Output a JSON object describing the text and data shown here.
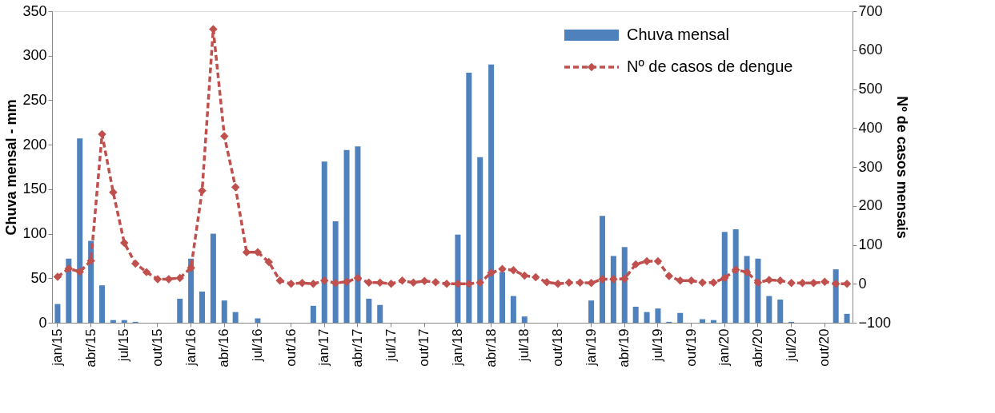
{
  "chart_data": {
    "type": "bar",
    "categories": [
      "jan/15",
      null,
      null,
      "abr/15",
      null,
      null,
      "jul/15",
      null,
      null,
      "out/15",
      null,
      null,
      "jan/16",
      null,
      null,
      "abr/16",
      null,
      null,
      "jul/16",
      null,
      null,
      "out/16",
      null,
      null,
      "jan/17",
      null,
      null,
      "abr/17",
      null,
      null,
      "jul/17",
      null,
      null,
      "out/17",
      null,
      null,
      "jan/18",
      null,
      null,
      "abr/18",
      null,
      null,
      "jul/18",
      null,
      null,
      "out/18",
      null,
      null,
      "jan/19",
      null,
      null,
      "abr/19",
      null,
      null,
      "jul/19",
      null,
      null,
      "out/19",
      null,
      null,
      "jan/20",
      null,
      null,
      "abr/20",
      null,
      null,
      "jul/20",
      null,
      null,
      "out/20",
      null,
      null
    ],
    "series": [
      {
        "name": "Chuva mensal",
        "color": "#4f81bd",
        "values": [
          21,
          72,
          207,
          92,
          42,
          3,
          3,
          1,
          0,
          0,
          0,
          27,
          72,
          35,
          100,
          25,
          12,
          0,
          5,
          0,
          0,
          0,
          0,
          19,
          181,
          114,
          194,
          198,
          27,
          20,
          0,
          0,
          0,
          0,
          0,
          0,
          99,
          281,
          186,
          290,
          57,
          30,
          7,
          0,
          0,
          0,
          0,
          0,
          25,
          120,
          75,
          85,
          18,
          12,
          16,
          1,
          11,
          0,
          4,
          3,
          102,
          105,
          75,
          72,
          30,
          26,
          1,
          0,
          0,
          0,
          60,
          10
        ]
      },
      {
        "name": "Nº de casos de dengue",
        "type": "line",
        "axis": "y2",
        "color": "#c0504d",
        "marker": "diamond",
        "line_style": "dashed",
        "values": [
          18,
          39,
          31,
          59,
          384,
          235,
          105,
          52,
          30,
          12,
          12,
          15,
          41,
          239,
          654,
          379,
          248,
          81,
          81,
          56,
          8,
          0,
          2,
          0,
          8,
          2,
          5,
          15,
          3,
          3,
          0,
          8,
          3,
          7,
          4,
          0,
          0,
          0,
          3,
          28,
          38,
          35,
          21,
          17,
          4,
          0,
          3,
          3,
          2,
          12,
          12,
          13,
          50,
          58,
          58,
          20,
          8,
          8,
          3,
          3,
          15,
          36,
          30,
          3,
          10,
          8,
          2,
          2,
          2,
          5,
          0,
          0
        ]
      }
    ],
    "ylabel": "Chuva mensal - mm",
    "y2label": "Nº de casos mensais",
    "ylim": [
      0,
      350
    ],
    "yticks": [
      0,
      50,
      100,
      150,
      200,
      250,
      300,
      350
    ],
    "y2lim": [
      -100,
      700
    ],
    "y2ticks": [
      -100,
      0,
      100,
      200,
      300,
      400,
      500,
      600,
      700
    ],
    "legend": "top right",
    "grid": false
  }
}
